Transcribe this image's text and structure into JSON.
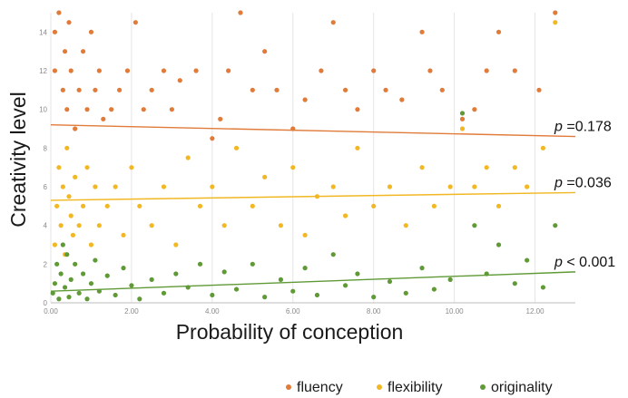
{
  "chart_data": {
    "type": "scatter",
    "xlabel": "Probability of conception",
    "ylabel": "Creativity level",
    "xlim": [
      0,
      13
    ],
    "ylim": [
      0,
      15
    ],
    "x_ticks": [
      0,
      2,
      4,
      6,
      8,
      10,
      12
    ],
    "x_tick_labels": [
      "0.00",
      "2.00",
      "4.00",
      "6.00",
      "8.00",
      "10.00",
      "12.00"
    ],
    "y_ticks": [
      0,
      2,
      4,
      6,
      8,
      10,
      12,
      14
    ],
    "y_tick_labels": [
      "0",
      "2",
      "4",
      "6",
      "8",
      "10",
      "12",
      "14"
    ],
    "grid": {
      "vertical": true,
      "horizontal": false
    },
    "legend": {
      "position": "bottom-right"
    },
    "series": [
      {
        "name": "fluency",
        "color": "#e07b39",
        "fit": {
          "x": [
            0,
            13
          ],
          "y": [
            9.2,
            8.6
          ]
        },
        "points": [
          [
            0.1,
            12
          ],
          [
            0.1,
            14
          ],
          [
            0.2,
            15
          ],
          [
            0.3,
            11
          ],
          [
            0.35,
            13
          ],
          [
            0.4,
            10
          ],
          [
            0.45,
            14.5
          ],
          [
            0.5,
            12
          ],
          [
            0.6,
            9
          ],
          [
            0.7,
            11
          ],
          [
            0.8,
            13
          ],
          [
            0.9,
            10
          ],
          [
            1.0,
            14
          ],
          [
            1.1,
            11
          ],
          [
            1.2,
            12
          ],
          [
            1.3,
            9.5
          ],
          [
            1.5,
            10
          ],
          [
            1.7,
            11
          ],
          [
            1.9,
            12
          ],
          [
            2.1,
            14.5
          ],
          [
            2.3,
            10
          ],
          [
            2.5,
            11
          ],
          [
            2.8,
            12
          ],
          [
            3.0,
            10
          ],
          [
            3.2,
            11.5
          ],
          [
            3.6,
            12
          ],
          [
            4.0,
            8.5
          ],
          [
            4.2,
            9.5
          ],
          [
            4.4,
            12
          ],
          [
            4.7,
            15
          ],
          [
            5.0,
            11
          ],
          [
            5.3,
            13
          ],
          [
            5.6,
            11
          ],
          [
            6.0,
            9
          ],
          [
            6.3,
            10.5
          ],
          [
            6.7,
            12
          ],
          [
            7.0,
            14.5
          ],
          [
            7.3,
            11
          ],
          [
            7.6,
            10
          ],
          [
            8.0,
            12
          ],
          [
            8.3,
            11
          ],
          [
            8.7,
            10.5
          ],
          [
            9.2,
            14
          ],
          [
            9.4,
            12
          ],
          [
            9.7,
            11
          ],
          [
            10.2,
            9.5
          ],
          [
            10.5,
            10
          ],
          [
            10.8,
            12
          ],
          [
            11.1,
            14
          ],
          [
            11.5,
            12
          ],
          [
            12.1,
            11
          ],
          [
            12.5,
            15
          ]
        ]
      },
      {
        "name": "flexibility",
        "color": "#f2b824",
        "fit": {
          "x": [
            0,
            13
          ],
          "y": [
            5.3,
            5.7
          ]
        },
        "points": [
          [
            0.1,
            3
          ],
          [
            0.15,
            5
          ],
          [
            0.2,
            7
          ],
          [
            0.25,
            4
          ],
          [
            0.3,
            6
          ],
          [
            0.35,
            2.5
          ],
          [
            0.4,
            8
          ],
          [
            0.45,
            5.5
          ],
          [
            0.5,
            4.5
          ],
          [
            0.55,
            3.5
          ],
          [
            0.6,
            6.5
          ],
          [
            0.7,
            4
          ],
          [
            0.8,
            5
          ],
          [
            0.9,
            7
          ],
          [
            1.0,
            3
          ],
          [
            1.1,
            6
          ],
          [
            1.2,
            4
          ],
          [
            1.4,
            5
          ],
          [
            1.6,
            6
          ],
          [
            1.8,
            3.5
          ],
          [
            2.0,
            7
          ],
          [
            2.2,
            5
          ],
          [
            2.5,
            4
          ],
          [
            2.8,
            6
          ],
          [
            3.1,
            3
          ],
          [
            3.4,
            7.5
          ],
          [
            3.7,
            5
          ],
          [
            4.0,
            6
          ],
          [
            4.3,
            4
          ],
          [
            4.6,
            8
          ],
          [
            5.0,
            5
          ],
          [
            5.3,
            6.5
          ],
          [
            5.7,
            4
          ],
          [
            6.0,
            7
          ],
          [
            6.3,
            3.5
          ],
          [
            6.6,
            5.5
          ],
          [
            7.0,
            6
          ],
          [
            7.3,
            4.5
          ],
          [
            7.6,
            8
          ],
          [
            8.0,
            5
          ],
          [
            8.4,
            6
          ],
          [
            8.8,
            4
          ],
          [
            9.2,
            7
          ],
          [
            9.5,
            5
          ],
          [
            9.9,
            6
          ],
          [
            10.2,
            9
          ],
          [
            10.5,
            6
          ],
          [
            10.8,
            7
          ],
          [
            11.1,
            5
          ],
          [
            11.5,
            7
          ],
          [
            11.8,
            6
          ],
          [
            12.2,
            8
          ],
          [
            12.5,
            14.5
          ]
        ]
      },
      {
        "name": "originality",
        "color": "#5f9a37",
        "fit": {
          "x": [
            0,
            13
          ],
          "y": [
            0.6,
            1.6
          ]
        },
        "points": [
          [
            0.05,
            0.5
          ],
          [
            0.1,
            1
          ],
          [
            0.15,
            2
          ],
          [
            0.2,
            0.2
          ],
          [
            0.25,
            1.5
          ],
          [
            0.3,
            3
          ],
          [
            0.35,
            0.8
          ],
          [
            0.4,
            2.5
          ],
          [
            0.45,
            0.3
          ],
          [
            0.5,
            1.2
          ],
          [
            0.6,
            2
          ],
          [
            0.7,
            0.5
          ],
          [
            0.8,
            1.5
          ],
          [
            0.9,
            0.2
          ],
          [
            1.0,
            1
          ],
          [
            1.1,
            2.2
          ],
          [
            1.2,
            0.6
          ],
          [
            1.4,
            1.4
          ],
          [
            1.6,
            0.4
          ],
          [
            1.8,
            1.8
          ],
          [
            2.0,
            0.9
          ],
          [
            2.2,
            0.2
          ],
          [
            2.5,
            1.2
          ],
          [
            2.8,
            0.5
          ],
          [
            3.1,
            1.5
          ],
          [
            3.4,
            0.8
          ],
          [
            3.7,
            2
          ],
          [
            4.0,
            0.4
          ],
          [
            4.3,
            1.6
          ],
          [
            4.6,
            0.7
          ],
          [
            5.0,
            2
          ],
          [
            5.3,
            0.3
          ],
          [
            5.7,
            1.2
          ],
          [
            6.0,
            0.6
          ],
          [
            6.3,
            1.8
          ],
          [
            6.6,
            0.4
          ],
          [
            7.0,
            2.5
          ],
          [
            7.3,
            0.9
          ],
          [
            7.6,
            1.5
          ],
          [
            8.0,
            0.3
          ],
          [
            8.4,
            1.1
          ],
          [
            8.8,
            0.5
          ],
          [
            9.2,
            1.8
          ],
          [
            9.5,
            0.7
          ],
          [
            9.9,
            1.2
          ],
          [
            10.2,
            9.8
          ],
          [
            10.5,
            4
          ],
          [
            10.8,
            1.5
          ],
          [
            11.1,
            3
          ],
          [
            11.5,
            1
          ],
          [
            11.8,
            2.2
          ],
          [
            12.2,
            0.8
          ],
          [
            12.5,
            4
          ]
        ]
      }
    ],
    "annotations": [
      {
        "prefix": "p",
        "text": " =0.178",
        "series": "fluency"
      },
      {
        "prefix": "p",
        "text": " =0.036",
        "series": "flexibility"
      },
      {
        "prefix": "p",
        "text": " < 0.001",
        "series": "originality"
      }
    ]
  }
}
